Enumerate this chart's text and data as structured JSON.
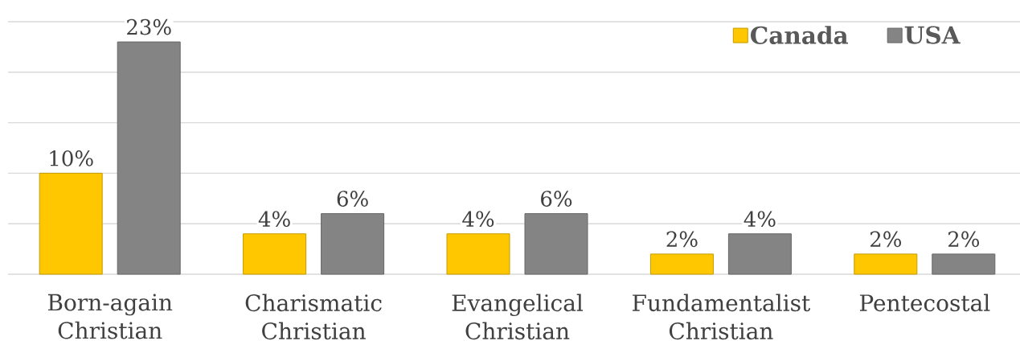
{
  "chart_data": {
    "type": "bar",
    "categories": [
      "Born-again Christian",
      "Charismatic Christian",
      "Evangelical Christian",
      "Fundamentalist Christian",
      "Pentecostal"
    ],
    "series": [
      {
        "name": "Canada",
        "color": "#fec700",
        "values": [
          10,
          4,
          4,
          2,
          2
        ],
        "value_labels": [
          "10%",
          "4%",
          "4%",
          "2%",
          "2%"
        ]
      },
      {
        "name": "USA",
        "color": "#848484",
        "values": [
          23,
          6,
          6,
          4,
          2
        ],
        "value_labels": [
          "23%",
          "6%",
          "6%",
          "4%",
          "2%"
        ]
      }
    ],
    "ylim": [
      0,
      25
    ],
    "yticks": [
      {
        "value": 0,
        "label": null
      },
      {
        "value": 5,
        "label": null
      },
      {
        "value": 10,
        "label": null
      },
      {
        "value": 15,
        "label": null
      },
      {
        "value": 20,
        "label": null
      },
      {
        "value": 25,
        "label": null
      }
    ],
    "grid": "y",
    "legend": "top right",
    "tick_labels": "x"
  }
}
